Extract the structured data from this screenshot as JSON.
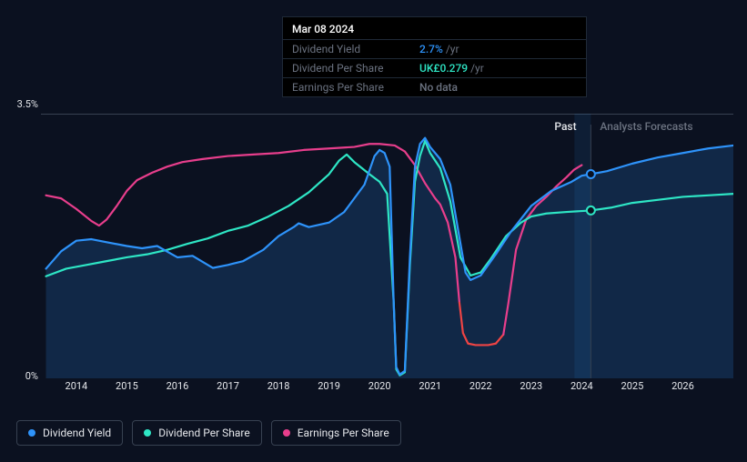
{
  "chart": {
    "type": "line",
    "background_color": "#0b1120",
    "grid_color": "#374151",
    "text_color": "#e5e7eb",
    "ylim": [
      0,
      3.5
    ],
    "yticks": [
      0,
      3.5
    ],
    "ytick_labels": [
      "0%",
      "3.5%"
    ],
    "xlim": [
      2013.3,
      2027
    ],
    "xticks": [
      2014,
      2015,
      2016,
      2017,
      2018,
      2019,
      2020,
      2021,
      2022,
      2023,
      2024,
      2025,
      2026
    ],
    "past_forecast_split": 2024.18,
    "region_past_label": "Past",
    "region_past_color": "#e5e7eb",
    "region_forecast_label": "Analysts Forecasts",
    "region_forecast_color": "#6b7280",
    "series": {
      "dividend_yield": {
        "label": "Dividend Yield",
        "color": "#2e93fa",
        "fill": true,
        "fill_color": "rgba(46,147,250,0.18)",
        "end_marker": {
          "fill": "#0b1120",
          "stroke": "#2e93fa"
        },
        "line_width": 2.2,
        "data": [
          [
            2013.4,
            1.45
          ],
          [
            2013.7,
            1.68
          ],
          [
            2014.0,
            1.82
          ],
          [
            2014.3,
            1.84
          ],
          [
            2014.6,
            1.8
          ],
          [
            2015.0,
            1.75
          ],
          [
            2015.3,
            1.72
          ],
          [
            2015.6,
            1.75
          ],
          [
            2016.0,
            1.6
          ],
          [
            2016.3,
            1.62
          ],
          [
            2016.7,
            1.46
          ],
          [
            2017.0,
            1.5
          ],
          [
            2017.3,
            1.55
          ],
          [
            2017.7,
            1.7
          ],
          [
            2018.0,
            1.88
          ],
          [
            2018.3,
            2.0
          ],
          [
            2018.4,
            2.05
          ],
          [
            2018.6,
            2.0
          ],
          [
            2019.0,
            2.06
          ],
          [
            2019.3,
            2.2
          ],
          [
            2019.7,
            2.56
          ],
          [
            2019.9,
            2.94
          ],
          [
            2020.0,
            3.02
          ],
          [
            2020.1,
            2.98
          ],
          [
            2020.2,
            2.8
          ],
          [
            2020.28,
            1.0
          ],
          [
            2020.33,
            0.15
          ],
          [
            2020.4,
            0.05
          ],
          [
            2020.5,
            0.1
          ],
          [
            2020.6,
            1.6
          ],
          [
            2020.7,
            2.8
          ],
          [
            2020.8,
            3.1
          ],
          [
            2020.9,
            3.18
          ],
          [
            2021.0,
            3.06
          ],
          [
            2021.2,
            2.9
          ],
          [
            2021.4,
            2.56
          ],
          [
            2021.7,
            1.4
          ],
          [
            2021.8,
            1.3
          ],
          [
            2022.0,
            1.36
          ],
          [
            2022.3,
            1.64
          ],
          [
            2022.6,
            1.94
          ],
          [
            2023.0,
            2.28
          ],
          [
            2023.4,
            2.48
          ],
          [
            2023.8,
            2.6
          ],
          [
            2024.0,
            2.68
          ],
          [
            2024.18,
            2.7
          ],
          [
            2024.5,
            2.74
          ],
          [
            2025.0,
            2.84
          ],
          [
            2025.5,
            2.92
          ],
          [
            2026.0,
            2.98
          ],
          [
            2026.5,
            3.04
          ],
          [
            2027.0,
            3.08
          ]
        ]
      },
      "dividend_per_share": {
        "label": "Dividend Per Share",
        "color": "#2ee6c5",
        "fill": false,
        "end_marker": {
          "fill": "#0b1120",
          "stroke": "#2ee6c5"
        },
        "line_width": 2.2,
        "data": [
          [
            2013.4,
            1.35
          ],
          [
            2013.8,
            1.45
          ],
          [
            2014.2,
            1.5
          ],
          [
            2014.6,
            1.55
          ],
          [
            2015.0,
            1.6
          ],
          [
            2015.4,
            1.64
          ],
          [
            2015.8,
            1.7
          ],
          [
            2016.2,
            1.78
          ],
          [
            2016.6,
            1.85
          ],
          [
            2017.0,
            1.95
          ],
          [
            2017.4,
            2.02
          ],
          [
            2017.8,
            2.14
          ],
          [
            2018.2,
            2.28
          ],
          [
            2018.6,
            2.46
          ],
          [
            2019.0,
            2.7
          ],
          [
            2019.2,
            2.88
          ],
          [
            2019.35,
            2.96
          ],
          [
            2019.5,
            2.86
          ],
          [
            2019.8,
            2.7
          ],
          [
            2020.0,
            2.6
          ],
          [
            2020.15,
            2.44
          ],
          [
            2020.28,
            1.0
          ],
          [
            2020.33,
            0.12
          ],
          [
            2020.4,
            0.04
          ],
          [
            2020.5,
            0.08
          ],
          [
            2020.6,
            1.5
          ],
          [
            2020.7,
            2.6
          ],
          [
            2020.8,
            2.94
          ],
          [
            2020.9,
            3.14
          ],
          [
            2021.0,
            2.98
          ],
          [
            2021.2,
            2.78
          ],
          [
            2021.4,
            2.34
          ],
          [
            2021.6,
            1.6
          ],
          [
            2021.8,
            1.36
          ],
          [
            2022.0,
            1.4
          ],
          [
            2022.2,
            1.58
          ],
          [
            2022.5,
            1.88
          ],
          [
            2022.8,
            2.06
          ],
          [
            2023.0,
            2.14
          ],
          [
            2023.3,
            2.18
          ],
          [
            2023.7,
            2.2
          ],
          [
            2024.18,
            2.22
          ],
          [
            2024.6,
            2.26
          ],
          [
            2025.0,
            2.32
          ],
          [
            2025.5,
            2.36
          ],
          [
            2026.0,
            2.4
          ],
          [
            2026.5,
            2.42
          ],
          [
            2027.0,
            2.44
          ]
        ]
      },
      "earnings_per_share": {
        "label": "Earnings Per Share",
        "color_segments": [
          {
            "color": "#e83e8c",
            "from": 2013.4,
            "to": 2021.58
          },
          {
            "color": "#ef4444",
            "from": 2021.58,
            "to": 2022.45
          },
          {
            "color": "#e83e8c",
            "from": 2022.45,
            "to": 2024.0
          }
        ],
        "fill": false,
        "line_width": 2.2,
        "data": [
          [
            2013.4,
            2.42
          ],
          [
            2013.7,
            2.38
          ],
          [
            2014.0,
            2.24
          ],
          [
            2014.3,
            2.08
          ],
          [
            2014.45,
            2.02
          ],
          [
            2014.6,
            2.1
          ],
          [
            2014.8,
            2.28
          ],
          [
            2015.0,
            2.48
          ],
          [
            2015.2,
            2.62
          ],
          [
            2015.5,
            2.72
          ],
          [
            2015.8,
            2.8
          ],
          [
            2016.1,
            2.86
          ],
          [
            2016.5,
            2.9
          ],
          [
            2017.0,
            2.94
          ],
          [
            2017.5,
            2.96
          ],
          [
            2018.0,
            2.98
          ],
          [
            2018.5,
            3.02
          ],
          [
            2019.0,
            3.04
          ],
          [
            2019.5,
            3.06
          ],
          [
            2019.8,
            3.1
          ],
          [
            2020.0,
            3.1
          ],
          [
            2020.3,
            3.08
          ],
          [
            2020.5,
            3.0
          ],
          [
            2020.7,
            2.82
          ],
          [
            2020.9,
            2.58
          ],
          [
            2021.0,
            2.48
          ],
          [
            2021.1,
            2.38
          ],
          [
            2021.2,
            2.3
          ],
          [
            2021.35,
            2.06
          ],
          [
            2021.5,
            1.6
          ],
          [
            2021.58,
            1.0
          ],
          [
            2021.65,
            0.6
          ],
          [
            2021.75,
            0.46
          ],
          [
            2021.9,
            0.44
          ],
          [
            2022.0,
            0.44
          ],
          [
            2022.15,
            0.44
          ],
          [
            2022.3,
            0.46
          ],
          [
            2022.45,
            0.58
          ],
          [
            2022.55,
            1.0
          ],
          [
            2022.7,
            1.7
          ],
          [
            2022.9,
            2.1
          ],
          [
            2023.1,
            2.28
          ],
          [
            2023.3,
            2.4
          ],
          [
            2023.5,
            2.54
          ],
          [
            2023.7,
            2.66
          ],
          [
            2023.85,
            2.76
          ],
          [
            2024.0,
            2.82
          ]
        ]
      }
    }
  },
  "tooltip": {
    "date": "Mar 08 2024",
    "rows": [
      {
        "label": "Dividend Yield",
        "value": "2.7%",
        "suffix": "/yr",
        "value_color": "#2e93fa"
      },
      {
        "label": "Dividend Per Share",
        "value": "UK£0.279",
        "suffix": "/yr",
        "value_color": "#2ee6c5"
      },
      {
        "label": "Earnings Per Share",
        "value": "No data",
        "suffix": "",
        "value_color": "#6b7280"
      }
    ]
  },
  "legend": [
    {
      "label": "Dividend Yield",
      "color": "#2e93fa"
    },
    {
      "label": "Dividend Per Share",
      "color": "#2ee6c5"
    },
    {
      "label": "Earnings Per Share",
      "color": "#e83e8c"
    }
  ]
}
